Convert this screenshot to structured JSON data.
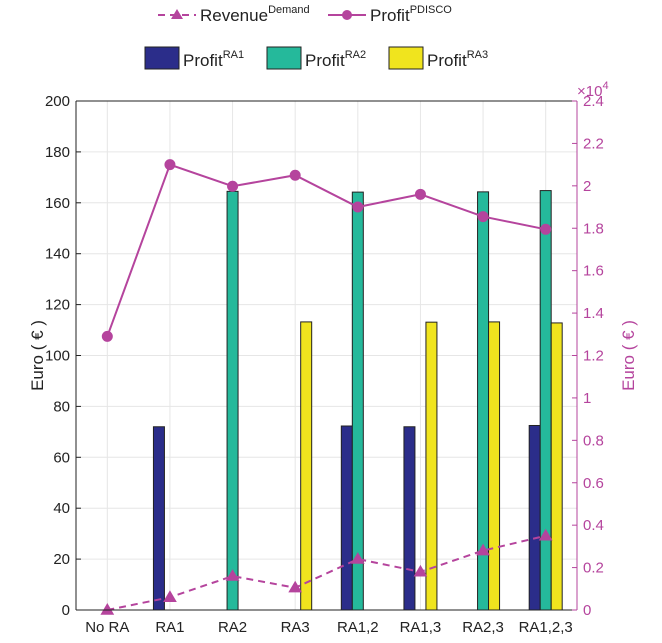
{
  "chart_data": {
    "type": "bar",
    "categories": [
      "No RA",
      "RA1",
      "RA2",
      "RA3",
      "RA1,2",
      "RA1,3",
      "RA2,3",
      "RA1,2,3"
    ],
    "left_axis": {
      "label": "Euro ( € )",
      "ylim": [
        0,
        200
      ],
      "ticks": [
        "0",
        "20",
        "40",
        "60",
        "80",
        "100",
        "120",
        "140",
        "160",
        "180",
        "200"
      ]
    },
    "right_axis": {
      "label": "Euro ( € )",
      "exponent": "×10",
      "exponent_power": "4",
      "ylim": [
        0,
        2.4
      ],
      "ticks": [
        "0",
        "0.2",
        "0.4",
        "0.6",
        "0.8",
        "1",
        "1.2",
        "1.4",
        "1.6",
        "1.8",
        "2",
        "2.2",
        "2.4"
      ],
      "color": "#b5449d"
    },
    "bar_series": [
      {
        "name": "Profit",
        "sup": "RA1",
        "color": "#2b2d8a",
        "values": [
          0,
          72,
          0,
          0,
          72.3,
          72,
          0,
          72.5
        ]
      },
      {
        "name": "Profit",
        "sup": "RA2",
        "color": "#25b99b",
        "values": [
          0,
          0,
          164.5,
          0,
          164.2,
          0,
          164.3,
          164.8
        ]
      },
      {
        "name": "Profit",
        "sup": "RA3",
        "color": "#f0e41e",
        "values": [
          0,
          0,
          0,
          113.2,
          0,
          113.1,
          113.2,
          112.8
        ]
      }
    ],
    "line_series": [
      {
        "name": "Revenue",
        "sup": "Demand",
        "color": "#b5449d",
        "dashed": true,
        "marker": "triangle",
        "axis": "right",
        "values": [
          0.0,
          0.06,
          0.16,
          0.105,
          0.24,
          0.18,
          0.28,
          0.35
        ]
      },
      {
        "name": "Profit",
        "sup": "PDISCO",
        "color": "#b5449d",
        "dashed": false,
        "marker": "circle",
        "axis": "right",
        "values": [
          1.29,
          2.1,
          1.998,
          2.05,
          1.9,
          1.96,
          1.855,
          1.795
        ]
      }
    ],
    "grid": true,
    "legend": "top"
  }
}
